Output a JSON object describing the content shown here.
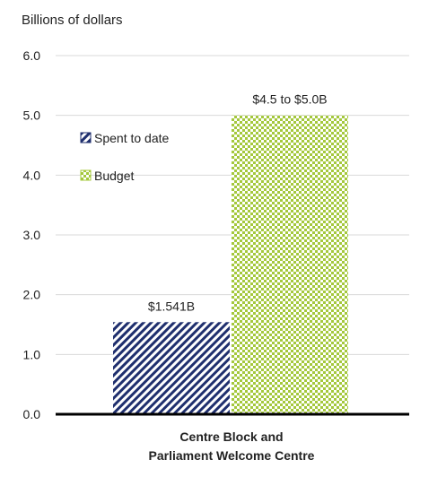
{
  "chart_data": {
    "type": "bar",
    "ylabel": "Billions of dollars",
    "categories": [
      "Centre Block and",
      "Parliament Welcome Centre"
    ],
    "ylim": [
      0,
      6
    ],
    "yticks": [
      "0.0",
      "1.0",
      "2.0",
      "3.0",
      "4.0",
      "5.0",
      "6.0"
    ],
    "grid": true,
    "legend_position": "upper-left",
    "series": [
      {
        "name": "Spent to date",
        "value": 1.541,
        "label": "$1.541B",
        "color": "#1f2f6e",
        "pattern": "diagonal-stripes"
      },
      {
        "name": "Budget",
        "value": 5.0,
        "label": "$4.5 to $5.0B",
        "color": "#a4c83c",
        "pattern": "checker"
      }
    ]
  }
}
